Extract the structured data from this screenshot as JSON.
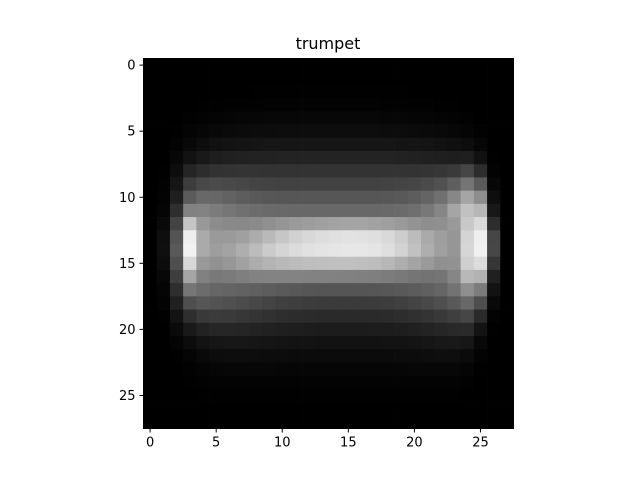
{
  "chart_data": {
    "type": "heatmap",
    "title": "trumpet",
    "xlabel": "",
    "ylabel": "",
    "colormap": "gray",
    "value_range": [
      0,
      255
    ],
    "rows": 28,
    "cols": 28,
    "x_ticks": [
      0,
      5,
      10,
      15,
      20,
      25
    ],
    "y_ticks": [
      0,
      5,
      10,
      15,
      20,
      25
    ],
    "x_tick_labels": [
      "0",
      "5",
      "10",
      "15",
      "20",
      "25"
    ],
    "y_tick_labels": [
      "0",
      "5",
      "10",
      "15",
      "20",
      "25"
    ],
    "values": [
      [
        0,
        0,
        0,
        0,
        0,
        0,
        0,
        0,
        0,
        0,
        0,
        0,
        0,
        0,
        0,
        0,
        0,
        0,
        0,
        0,
        0,
        0,
        0,
        0,
        0,
        0,
        0,
        0
      ],
      [
        0,
        0,
        0,
        0,
        0,
        0,
        0,
        0,
        0,
        0,
        0,
        0,
        0,
        0,
        0,
        0,
        0,
        0,
        0,
        0,
        0,
        0,
        0,
        0,
        0,
        0,
        0,
        0
      ],
      [
        0,
        0,
        0,
        0,
        0,
        0,
        0,
        0,
        1,
        1,
        1,
        1,
        1,
        1,
        1,
        1,
        1,
        1,
        1,
        1,
        0,
        0,
        0,
        0,
        0,
        0,
        0,
        0
      ],
      [
        0,
        0,
        0,
        0,
        1,
        1,
        2,
        2,
        2,
        3,
        3,
        3,
        3,
        3,
        3,
        3,
        3,
        3,
        2,
        2,
        2,
        2,
        1,
        1,
        0,
        0,
        0,
        0
      ],
      [
        0,
        0,
        0,
        2,
        3,
        4,
        5,
        6,
        6,
        7,
        7,
        7,
        7,
        7,
        7,
        7,
        7,
        7,
        6,
        6,
        5,
        5,
        4,
        3,
        2,
        0,
        0,
        0
      ],
      [
        0,
        0,
        1,
        4,
        6,
        8,
        10,
        11,
        12,
        12,
        13,
        13,
        13,
        13,
        13,
        13,
        13,
        13,
        12,
        12,
        11,
        10,
        9,
        7,
        5,
        2,
        0,
        0
      ],
      [
        0,
        0,
        3,
        8,
        13,
        17,
        19,
        20,
        21,
        22,
        22,
        22,
        22,
        22,
        22,
        22,
        22,
        22,
        22,
        21,
        21,
        20,
        18,
        16,
        13,
        6,
        0,
        0
      ],
      [
        0,
        0,
        7,
        18,
        25,
        30,
        32,
        33,
        34,
        34,
        35,
        35,
        35,
        35,
        35,
        35,
        35,
        35,
        35,
        34,
        33,
        32,
        31,
        30,
        31,
        17,
        1,
        0
      ],
      [
        0,
        1,
        13,
        37,
        45,
        50,
        51,
        52,
        52,
        51,
        51,
        51,
        51,
        51,
        51,
        51,
        51,
        51,
        51,
        51,
        51,
        52,
        54,
        58,
        70,
        45,
        3,
        0
      ],
      [
        0,
        2,
        21,
        61,
        72,
        75,
        73,
        71,
        68,
        67,
        66,
        66,
        66,
        66,
        66,
        66,
        66,
        66,
        67,
        68,
        70,
        74,
        81,
        95,
        117,
        90,
        7,
        0
      ],
      [
        0,
        3,
        31,
        91,
        104,
        103,
        98,
        93,
        89,
        87,
        86,
        86,
        86,
        86,
        86,
        86,
        86,
        86,
        87,
        89,
        93,
        100,
        112,
        135,
        165,
        141,
        14,
        0
      ],
      [
        0,
        5,
        46,
        130,
        131,
        124,
        118,
        112,
        108,
        106,
        105,
        104,
        104,
        104,
        104,
        104,
        104,
        104,
        105,
        107,
        111,
        120,
        134,
        165,
        193,
        183,
        24,
        0
      ],
      [
        0,
        9,
        67,
        197,
        153,
        140,
        137,
        136,
        139,
        144,
        149,
        154,
        157,
        160,
        163,
        164,
        164,
        162,
        159,
        154,
        147,
        142,
        143,
        153,
        200,
        218,
        45,
        0
      ],
      [
        0,
        14,
        84,
        238,
        170,
        154,
        154,
        160,
        172,
        185,
        198,
        209,
        216,
        221,
        224,
        226,
        225,
        223,
        217,
        205,
        188,
        170,
        158,
        150,
        212,
        238,
        70,
        0
      ],
      [
        0,
        15,
        89,
        242,
        170,
        158,
        163,
        174,
        188,
        203,
        213,
        220,
        225,
        228,
        230,
        231,
        231,
        229,
        223,
        211,
        193,
        174,
        159,
        150,
        214,
        240,
        71,
        0
      ],
      [
        0,
        12,
        79,
        215,
        153,
        145,
        151,
        161,
        172,
        180,
        185,
        188,
        190,
        191,
        192,
        192,
        191,
        189,
        183,
        174,
        164,
        154,
        144,
        146,
        207,
        220,
        54,
        0
      ],
      [
        0,
        8,
        62,
        165,
        129,
        121,
        123,
        127,
        130,
        131,
        131,
        131,
        130,
        130,
        129,
        129,
        128,
        127,
        124,
        121,
        117,
        115,
        117,
        134,
        184,
        178,
        32,
        0
      ],
      [
        0,
        5,
        46,
        118,
        108,
        102,
        100,
        98,
        96,
        93,
        90,
        88,
        86,
        85,
        85,
        85,
        85,
        86,
        87,
        89,
        92,
        96,
        102,
        115,
        143,
        124,
        18,
        0
      ],
      [
        0,
        3,
        32,
        78,
        86,
        83,
        80,
        76,
        72,
        68,
        64,
        62,
        60,
        59,
        59,
        59,
        59,
        60,
        61,
        64,
        68,
        73,
        79,
        89,
        104,
        78,
        9,
        0
      ],
      [
        0,
        1,
        19,
        46,
        57,
        59,
        58,
        55,
        52,
        49,
        46,
        44,
        43,
        42,
        42,
        42,
        42,
        42,
        43,
        45,
        48,
        52,
        57,
        63,
        70,
        42,
        3,
        0
      ],
      [
        0,
        0,
        10,
        25,
        34,
        38,
        38,
        37,
        35,
        33,
        31,
        30,
        29,
        28,
        28,
        28,
        28,
        29,
        29,
        30,
        32,
        35,
        38,
        41,
        42,
        19,
        1,
        0
      ],
      [
        0,
        0,
        4,
        12,
        19,
        22,
        23,
        23,
        22,
        21,
        20,
        19,
        19,
        18,
        18,
        18,
        18,
        18,
        19,
        19,
        20,
        22,
        24,
        25,
        23,
        8,
        0,
        0
      ],
      [
        0,
        0,
        1,
        5,
        9,
        12,
        13,
        13,
        13,
        12,
        12,
        11,
        11,
        11,
        11,
        11,
        11,
        11,
        11,
        12,
        12,
        13,
        14,
        14,
        11,
        3,
        0,
        0
      ],
      [
        0,
        0,
        0,
        2,
        4,
        6,
        7,
        7,
        7,
        7,
        6,
        6,
        6,
        6,
        6,
        6,
        6,
        6,
        6,
        6,
        7,
        7,
        7,
        7,
        5,
        1,
        0,
        0
      ],
      [
        0,
        0,
        0,
        1,
        2,
        3,
        3,
        3,
        3,
        3,
        3,
        3,
        3,
        3,
        3,
        3,
        3,
        3,
        3,
        3,
        3,
        3,
        3,
        3,
        2,
        0,
        0,
        0
      ],
      [
        0,
        0,
        0,
        0,
        1,
        1,
        1,
        1,
        1,
        1,
        1,
        1,
        1,
        1,
        1,
        1,
        1,
        1,
        1,
        1,
        1,
        1,
        1,
        1,
        0,
        0,
        0,
        0
      ],
      [
        0,
        0,
        0,
        0,
        0,
        0,
        0,
        0,
        0,
        0,
        0,
        0,
        0,
        0,
        0,
        0,
        0,
        0,
        0,
        0,
        0,
        0,
        0,
        0,
        0,
        0,
        0,
        0
      ],
      [
        0,
        0,
        0,
        0,
        0,
        0,
        0,
        0,
        0,
        0,
        0,
        0,
        0,
        0,
        0,
        0,
        0,
        0,
        0,
        0,
        0,
        0,
        0,
        0,
        0,
        0,
        0,
        0
      ]
    ]
  }
}
